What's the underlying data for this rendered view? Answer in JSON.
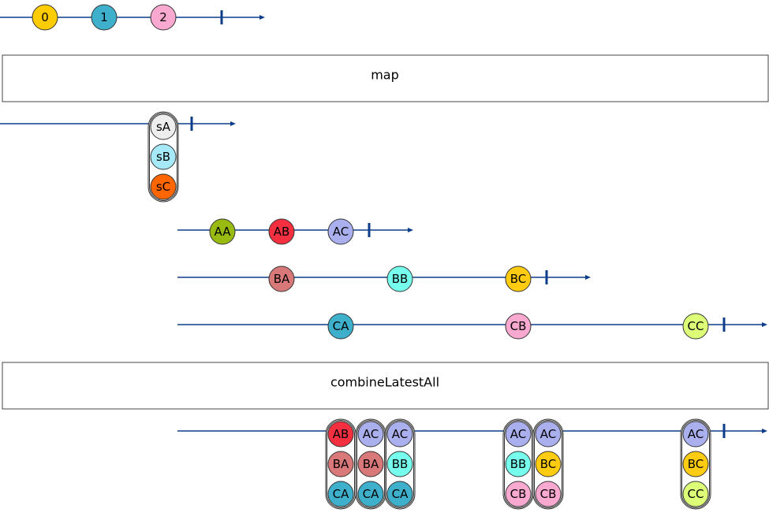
{
  "operators": {
    "map": "map",
    "combine": "combineLatestAll"
  },
  "colors": {
    "line": "#0d3d8a",
    "yellow": "#ffcc00",
    "blue": "#3fb0cc",
    "pink": "#f9a8d0",
    "light_gray": "#eeeeee",
    "light_blue": "#a6eaf9",
    "orange": "#ff6600",
    "green": "#99bb11",
    "red": "#f43040",
    "lavender": "#aab0ee",
    "rose": "#d87878",
    "aqua": "#77ffee",
    "amber": "#ffcc11",
    "lime": "#ddff77"
  },
  "streams": {
    "source": {
      "marbles": [
        {
          "label": "0",
          "color": "yellow"
        },
        {
          "label": "1",
          "color": "blue"
        },
        {
          "label": "2",
          "color": "pink"
        }
      ]
    },
    "mapped": {
      "stack": [
        {
          "label": "sA",
          "color": "light_gray"
        },
        {
          "label": "sB",
          "color": "light_blue"
        },
        {
          "label": "sC",
          "color": "orange"
        }
      ]
    },
    "inner_a": {
      "marbles": [
        {
          "label": "AA",
          "color": "green"
        },
        {
          "label": "AB",
          "color": "red"
        },
        {
          "label": "AC",
          "color": "lavender"
        }
      ]
    },
    "inner_b": {
      "marbles": [
        {
          "label": "BA",
          "color": "rose"
        },
        {
          "label": "BB",
          "color": "aqua"
        },
        {
          "label": "BC",
          "color": "amber"
        }
      ]
    },
    "inner_c": {
      "marbles": [
        {
          "label": "CA",
          "color": "blue"
        },
        {
          "label": "CB",
          "color": "pink"
        },
        {
          "label": "CC",
          "color": "lime"
        }
      ]
    },
    "output": {
      "stacks": [
        [
          {
            "label": "AB",
            "color": "red"
          },
          {
            "label": "BA",
            "color": "rose"
          },
          {
            "label": "CA",
            "color": "blue"
          }
        ],
        [
          {
            "label": "AC",
            "color": "lavender"
          },
          {
            "label": "BA",
            "color": "rose"
          },
          {
            "label": "CA",
            "color": "blue"
          }
        ],
        [
          {
            "label": "AC",
            "color": "lavender"
          },
          {
            "label": "BB",
            "color": "aqua"
          },
          {
            "label": "CA",
            "color": "blue"
          }
        ],
        [
          {
            "label": "AC",
            "color": "lavender"
          },
          {
            "label": "BB",
            "color": "aqua"
          },
          {
            "label": "CB",
            "color": "pink"
          }
        ],
        [
          {
            "label": "AC",
            "color": "lavender"
          },
          {
            "label": "BC",
            "color": "amber"
          },
          {
            "label": "CB",
            "color": "pink"
          }
        ],
        [
          {
            "label": "AC",
            "color": "lavender"
          },
          {
            "label": "BC",
            "color": "amber"
          },
          {
            "label": "CC",
            "color": "lime"
          }
        ]
      ]
    }
  }
}
